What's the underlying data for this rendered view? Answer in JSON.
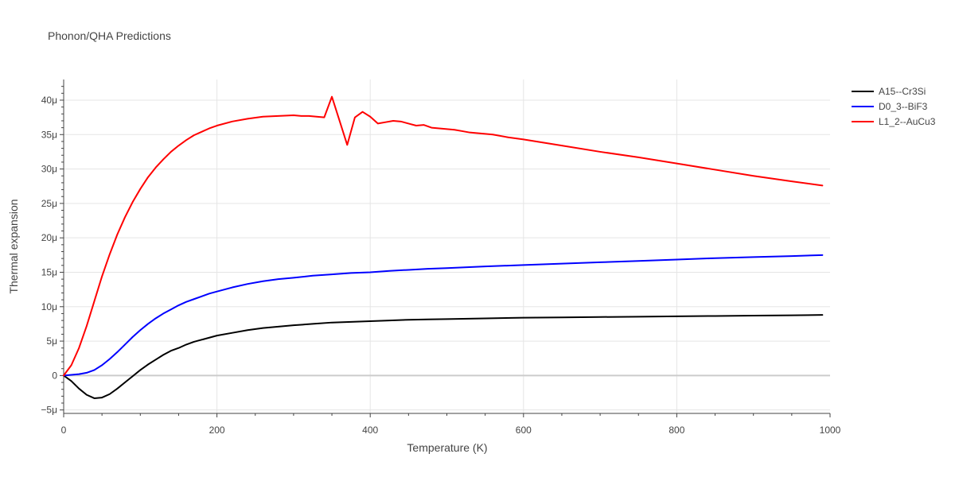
{
  "chart_data": {
    "type": "line",
    "title": "Phonon/QHA Predictions",
    "xlabel": "Temperature (K)",
    "ylabel": "Thermal expansion",
    "xlim": [
      0,
      1000
    ],
    "ylim": [
      -5.5,
      43
    ],
    "x_ticks": [
      0,
      200,
      400,
      600,
      800,
      1000
    ],
    "x_tick_labels": [
      "0",
      "200",
      "400",
      "600",
      "800",
      "1000"
    ],
    "y_ticks": [
      -5,
      0,
      5,
      10,
      15,
      20,
      25,
      30,
      35,
      40
    ],
    "y_tick_labels": [
      "−5μ",
      "0",
      "5μ",
      "10μ",
      "15μ",
      "20μ",
      "25μ",
      "30μ",
      "35μ",
      "40μ"
    ],
    "grid": true,
    "legend_position": "top-right",
    "series": [
      {
        "name": "A15--Cr3Si",
        "color": "#000000",
        "x": [
          0,
          10,
          20,
          30,
          40,
          50,
          60,
          70,
          80,
          90,
          100,
          110,
          120,
          130,
          140,
          150,
          160,
          170,
          180,
          190,
          200,
          220,
          240,
          260,
          280,
          300,
          325,
          350,
          375,
          400,
          425,
          450,
          475,
          500,
          550,
          600,
          650,
          700,
          750,
          800,
          850,
          900,
          950,
          990
        ],
        "y": [
          0,
          -0.8,
          -1.9,
          -2.8,
          -3.3,
          -3.2,
          -2.7,
          -1.9,
          -1.0,
          -0.1,
          0.8,
          1.6,
          2.3,
          3.0,
          3.6,
          4.0,
          4.5,
          4.9,
          5.2,
          5.5,
          5.8,
          6.2,
          6.6,
          6.9,
          7.1,
          7.3,
          7.5,
          7.7,
          7.8,
          7.9,
          8.0,
          8.1,
          8.15,
          8.2,
          8.3,
          8.4,
          8.45,
          8.5,
          8.55,
          8.6,
          8.65,
          8.7,
          8.75,
          8.8
        ]
      },
      {
        "name": "D0_3--BiF3",
        "color": "#0000ff",
        "x": [
          0,
          10,
          20,
          30,
          40,
          50,
          60,
          70,
          80,
          90,
          100,
          110,
          120,
          130,
          140,
          150,
          160,
          170,
          180,
          190,
          200,
          220,
          240,
          260,
          280,
          300,
          325,
          350,
          375,
          400,
          425,
          450,
          475,
          500,
          550,
          600,
          650,
          700,
          750,
          800,
          850,
          900,
          950,
          990
        ],
        "y": [
          0,
          0.1,
          0.2,
          0.4,
          0.8,
          1.5,
          2.4,
          3.4,
          4.5,
          5.6,
          6.6,
          7.5,
          8.3,
          9.0,
          9.6,
          10.2,
          10.7,
          11.1,
          11.5,
          11.9,
          12.2,
          12.8,
          13.3,
          13.7,
          14.0,
          14.2,
          14.5,
          14.7,
          14.9,
          15.0,
          15.2,
          15.35,
          15.5,
          15.6,
          15.85,
          16.05,
          16.25,
          16.45,
          16.65,
          16.85,
          17.05,
          17.2,
          17.35,
          17.5
        ]
      },
      {
        "name": "L1_2--AuCu3",
        "color": "#ff0000",
        "x": [
          0,
          10,
          20,
          30,
          40,
          50,
          60,
          70,
          80,
          90,
          100,
          110,
          120,
          130,
          140,
          150,
          160,
          170,
          180,
          190,
          200,
          220,
          240,
          260,
          280,
          300,
          310,
          320,
          330,
          340,
          350,
          360,
          370,
          380,
          390,
          400,
          410,
          420,
          430,
          440,
          450,
          460,
          470,
          480,
          490,
          500,
          510,
          520,
          530,
          540,
          550,
          560,
          580,
          600,
          650,
          700,
          750,
          800,
          850,
          900,
          950,
          990
        ],
        "y": [
          0,
          1.5,
          4.0,
          7.2,
          10.8,
          14.4,
          17.6,
          20.5,
          23.0,
          25.2,
          27.1,
          28.8,
          30.2,
          31.4,
          32.5,
          33.4,
          34.2,
          34.9,
          35.4,
          35.9,
          36.3,
          36.9,
          37.3,
          37.6,
          37.7,
          37.8,
          37.7,
          37.7,
          37.6,
          37.5,
          40.5,
          37.0,
          33.5,
          37.5,
          38.3,
          37.6,
          36.6,
          36.8,
          37.0,
          36.9,
          36.6,
          36.3,
          36.4,
          36.0,
          35.9,
          35.8,
          35.7,
          35.5,
          35.3,
          35.2,
          35.1,
          35.0,
          34.6,
          34.3,
          33.4,
          32.5,
          31.7,
          30.8,
          29.9,
          29.0,
          28.2,
          27.6
        ]
      }
    ]
  }
}
